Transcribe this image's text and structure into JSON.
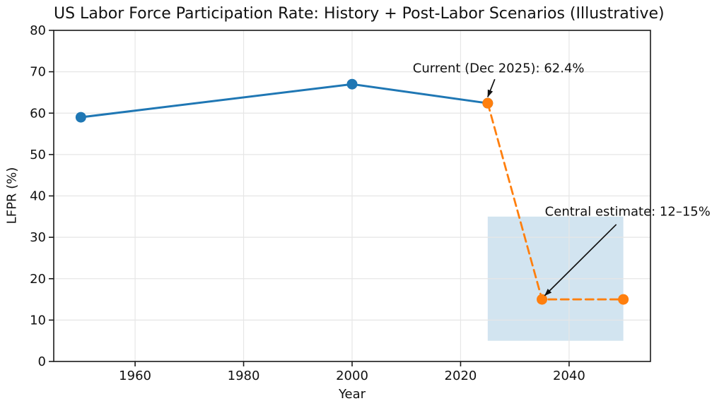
{
  "chart_data": {
    "type": "line",
    "title": "US Labor Force Participation Rate: History + Post-Labor Scenarios (Illustrative)",
    "xlabel": "Year",
    "ylabel": "LFPR (%)",
    "xlim": [
      1945,
      2055
    ],
    "ylim": [
      0,
      80
    ],
    "x_ticks": [
      1960,
      1980,
      2000,
      2020,
      2040
    ],
    "y_ticks": [
      0,
      10,
      20,
      30,
      40,
      50,
      60,
      70,
      80
    ],
    "grid": true,
    "legend": "none",
    "series": [
      {
        "name": "history",
        "color": "#1f77b4",
        "line_style": "solid",
        "line_width": 3,
        "marker": "circle",
        "marker_radius": 7.5,
        "x": [
          1950,
          2000,
          2025
        ],
        "y": [
          59,
          67,
          62.4
        ]
      },
      {
        "name": "post-labor-scenario",
        "color": "#ff7f0e",
        "line_style": "dashed",
        "line_width": 2.8,
        "marker": "circle",
        "marker_radius": 7.5,
        "x": [
          2025,
          2035,
          2050
        ],
        "y": [
          62.4,
          15,
          15
        ]
      }
    ],
    "uncertainty_band": {
      "x0": 2025,
      "x1": 2050,
      "y0": 5,
      "y1": 35,
      "color": "#d2e4f0"
    },
    "annotations": [
      {
        "name": "current",
        "text": "Current (Dec 2025): 62.4%",
        "text_at": [
          2027.0,
          70.8
        ],
        "arrow_from": [
          2026.3,
          68.2
        ],
        "arrow_to": [
          2025.0,
          63.9
        ],
        "point": [
          2025,
          62.4
        ]
      },
      {
        "name": "central-estimate",
        "text": "Central estimate: 12–15%",
        "text_at": [
          2050.8,
          36.2
        ],
        "arrow_from": [
          2048.7,
          33.1
        ],
        "arrow_to": [
          2035.5,
          15.9
        ],
        "point": [
          2035,
          15
        ]
      }
    ],
    "colors": {
      "axis": "#1a1a1a",
      "grid": "#e6e6e6",
      "text": "#111111",
      "arrow": "#111111",
      "background": "#ffffff"
    }
  }
}
